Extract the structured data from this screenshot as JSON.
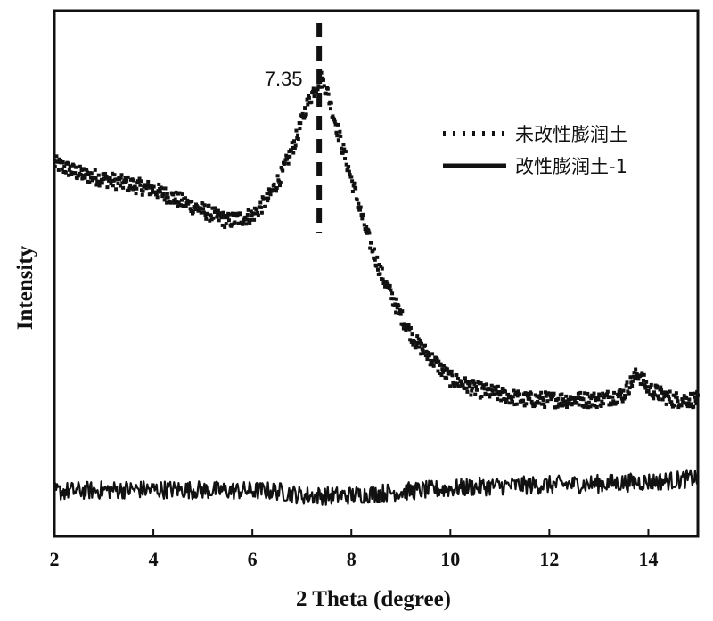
{
  "chart_data": {
    "type": "line",
    "title": "",
    "xlabel": "2 Theta (degree)",
    "ylabel": "Intensity",
    "xlim": [
      2,
      15
    ],
    "ylim": [
      0,
      1
    ],
    "x_ticks": [
      2,
      4,
      6,
      8,
      10,
      12,
      14
    ],
    "y_ticks_labeled": false,
    "grid": false,
    "legend_position": "top-right",
    "annotations": [
      {
        "text": "7.35",
        "x": 7.35,
        "marker": "dashed-vertical-line"
      }
    ],
    "series": [
      {
        "name": "未改性膨润土",
        "style": "dotted",
        "color": "#111111",
        "x": [
          2.0,
          2.5,
          3.0,
          3.5,
          4.0,
          4.5,
          5.0,
          5.5,
          6.0,
          6.3,
          6.6,
          6.9,
          7.1,
          7.3,
          7.4,
          7.5,
          7.7,
          8.0,
          8.3,
          8.6,
          9.0,
          9.3,
          9.7,
          10.0,
          10.5,
          11.0,
          11.5,
          12.0,
          12.5,
          13.0,
          13.5,
          13.7,
          13.8,
          14.0,
          14.5,
          15.0
        ],
        "y": [
          0.71,
          0.69,
          0.68,
          0.67,
          0.66,
          0.64,
          0.62,
          0.6,
          0.61,
          0.64,
          0.69,
          0.76,
          0.82,
          0.86,
          0.87,
          0.85,
          0.78,
          0.68,
          0.58,
          0.5,
          0.42,
          0.37,
          0.33,
          0.3,
          0.28,
          0.27,
          0.26,
          0.26,
          0.26,
          0.26,
          0.27,
          0.3,
          0.31,
          0.28,
          0.26,
          0.26
        ]
      },
      {
        "name": "改性膨润土-1",
        "style": "solid",
        "color": "#111111",
        "x": [
          2.0,
          2.5,
          3.0,
          3.5,
          4.0,
          4.5,
          5.0,
          5.5,
          6.0,
          6.5,
          7.0,
          7.5,
          8.0,
          8.5,
          9.0,
          9.5,
          10.0,
          10.5,
          11.0,
          11.5,
          12.0,
          12.5,
          13.0,
          13.5,
          14.0,
          14.5,
          15.0
        ],
        "y": [
          0.085,
          0.087,
          0.088,
          0.089,
          0.089,
          0.089,
          0.088,
          0.087,
          0.087,
          0.086,
          0.078,
          0.077,
          0.078,
          0.082,
          0.085,
          0.088,
          0.091,
          0.094,
          0.096,
          0.097,
          0.098,
          0.099,
          0.1,
          0.102,
          0.104,
          0.106,
          0.112
        ]
      }
    ]
  }
}
